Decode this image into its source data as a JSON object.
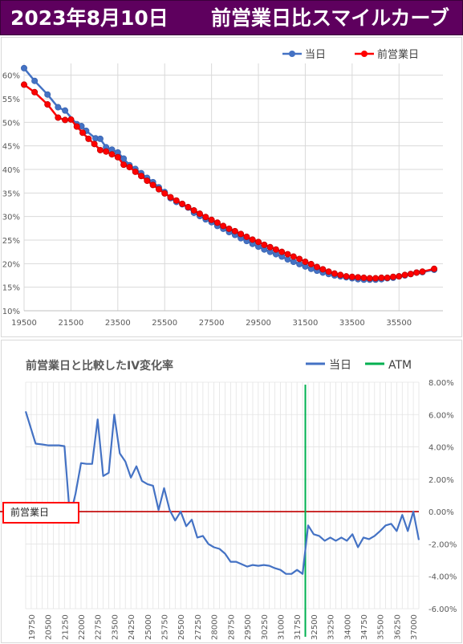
{
  "header": {
    "date": "2023年8月10日",
    "title": "前営業日比スマイルカーブ"
  },
  "label_box": "前営業日",
  "chart_data": [
    {
      "type": "line",
      "title": "",
      "x_ticks": [
        19500,
        21500,
        23500,
        25500,
        27500,
        29500,
        31500,
        33500,
        35500
      ],
      "y_ticks": [
        "10%",
        "15%",
        "20%",
        "25%",
        "30%",
        "35%",
        "40%",
        "45%",
        "50%",
        "55%",
        "60%"
      ],
      "xlim": [
        19500,
        37375
      ],
      "ylim": [
        10,
        62.5
      ],
      "y_unit": "%",
      "grid": true,
      "legend": "top-right",
      "series": [
        {
          "name": "当日",
          "color": "#4472c4",
          "points": [
            [
              19500,
              61.5
            ],
            [
              19950,
              58.8
            ],
            [
              20500,
              55.9
            ],
            [
              20950,
              53.2
            ],
            [
              21250,
              52.5
            ],
            [
              21750,
              49.6
            ],
            [
              21950,
              49.2
            ],
            [
              22150,
              48.2
            ],
            [
              22550,
              46.6
            ],
            [
              22750,
              46.5
            ],
            [
              23000,
              44.7
            ],
            [
              23250,
              44.2
            ],
            [
              23500,
              43.6
            ],
            [
              23750,
              42.3
            ],
            [
              24000,
              40.9
            ],
            [
              24250,
              40.1
            ],
            [
              24500,
              39.2
            ],
            [
              24750,
              38.2
            ],
            [
              25000,
              37.3
            ],
            [
              25250,
              36.2
            ],
            [
              25500,
              35.2
            ],
            [
              25750,
              33.9
            ],
            [
              26000,
              33.1
            ],
            [
              26250,
              32.6
            ],
            [
              26500,
              31.9
            ],
            [
              26750,
              30.8
            ],
            [
              27000,
              30.1
            ],
            [
              27250,
              29.4
            ],
            [
              27500,
              28.8
            ],
            [
              27750,
              28.0
            ],
            [
              28000,
              27.4
            ],
            [
              28250,
              26.7
            ],
            [
              28500,
              26.1
            ],
            [
              28750,
              25.4
            ],
            [
              29000,
              24.8
            ],
            [
              29250,
              24.2
            ],
            [
              29500,
              23.6
            ],
            [
              29750,
              23.0
            ],
            [
              30000,
              22.5
            ],
            [
              30250,
              22.0
            ],
            [
              30500,
              21.5
            ],
            [
              30750,
              20.9
            ],
            [
              31000,
              20.4
            ],
            [
              31250,
              19.9
            ],
            [
              31500,
              19.4
            ],
            [
              31750,
              18.9
            ],
            [
              32000,
              18.5
            ],
            [
              32250,
              18.1
            ],
            [
              32500,
              17.8
            ],
            [
              32750,
              17.5
            ],
            [
              33000,
              17.3
            ],
            [
              33250,
              17.1
            ],
            [
              33500,
              16.9
            ],
            [
              33750,
              16.7
            ],
            [
              34000,
              16.6
            ],
            [
              34250,
              16.6
            ],
            [
              34500,
              16.6
            ],
            [
              34750,
              16.7
            ],
            [
              35000,
              16.9
            ],
            [
              35250,
              17.0
            ],
            [
              35500,
              17.3
            ],
            [
              35750,
              17.5
            ],
            [
              36000,
              17.8
            ],
            [
              36250,
              18.1
            ],
            [
              36500,
              18.2
            ],
            [
              37000,
              18.7
            ]
          ]
        },
        {
          "name": "前営業日",
          "color": "#ff0000",
          "points": [
            [
              19500,
              58.0
            ],
            [
              19950,
              56.4
            ],
            [
              20500,
              53.8
            ],
            [
              20950,
              51.0
            ],
            [
              21250,
              50.5
            ],
            [
              21500,
              50.6
            ],
            [
              21750,
              49.1
            ],
            [
              22000,
              47.8
            ],
            [
              22250,
              46.5
            ],
            [
              22500,
              45.4
            ],
            [
              22750,
              44.1
            ],
            [
              23000,
              43.8
            ],
            [
              23250,
              43.2
            ],
            [
              23500,
              42.6
            ],
            [
              23750,
              41.0
            ],
            [
              24000,
              40.5
            ],
            [
              24250,
              39.5
            ],
            [
              24500,
              38.6
            ],
            [
              24750,
              37.6
            ],
            [
              25000,
              36.7
            ],
            [
              25250,
              35.8
            ],
            [
              25500,
              34.9
            ],
            [
              25750,
              34.1
            ],
            [
              26000,
              33.4
            ],
            [
              26250,
              32.7
            ],
            [
              26500,
              32.0
            ],
            [
              26750,
              31.3
            ],
            [
              27000,
              30.6
            ],
            [
              27250,
              29.9
            ],
            [
              27500,
              29.3
            ],
            [
              27750,
              28.7
            ],
            [
              28000,
              28.0
            ],
            [
              28250,
              27.4
            ],
            [
              28500,
              26.9
            ],
            [
              28750,
              26.3
            ],
            [
              29000,
              25.7
            ],
            [
              29250,
              25.1
            ],
            [
              29500,
              24.6
            ],
            [
              29750,
              24.0
            ],
            [
              30000,
              23.5
            ],
            [
              30250,
              23.0
            ],
            [
              30500,
              22.5
            ],
            [
              30750,
              22.0
            ],
            [
              31000,
              21.5
            ],
            [
              31250,
              21.0
            ],
            [
              31500,
              20.4
            ],
            [
              31750,
              19.9
            ],
            [
              32000,
              19.3
            ],
            [
              32250,
              18.8
            ],
            [
              32500,
              18.3
            ],
            [
              32750,
              17.9
            ],
            [
              33000,
              17.6
            ],
            [
              33250,
              17.3
            ],
            [
              33500,
              17.2
            ],
            [
              33750,
              17.1
            ],
            [
              34000,
              17.0
            ],
            [
              34250,
              16.9
            ],
            [
              34500,
              16.9
            ],
            [
              34750,
              17.0
            ],
            [
              35000,
              17.0
            ],
            [
              35250,
              17.2
            ],
            [
              35500,
              17.3
            ],
            [
              35750,
              17.6
            ],
            [
              36000,
              17.8
            ],
            [
              36250,
              18.1
            ],
            [
              36500,
              18.3
            ],
            [
              37000,
              18.9
            ]
          ]
        }
      ]
    },
    {
      "type": "line",
      "title": "前営業日と比較したIV変化率",
      "x_ticks": [
        19750,
        20500,
        21250,
        22000,
        22750,
        23500,
        24250,
        25000,
        25750,
        26500,
        27250,
        28000,
        28750,
        29500,
        30250,
        31000,
        31750,
        32500,
        33250,
        34000,
        34750,
        35500,
        36250,
        37000
      ],
      "xlim": [
        19500,
        37250
      ],
      "y_ticks": [
        "8.00%",
        "6.00%",
        "4.00%",
        "2.00%",
        "0.00%",
        "-2.00%",
        "-4.00%",
        "-6.00%"
      ],
      "ylim": [
        -6,
        8
      ],
      "y_unit": "%",
      "legend": "top-right",
      "series": [
        {
          "name": "当日",
          "color": "#4472c4",
          "points": [
            [
              19500,
              6.2
            ],
            [
              19950,
              4.2
            ],
            [
              20250,
              4.15
            ],
            [
              20500,
              4.1
            ],
            [
              20800,
              4.1
            ],
            [
              21000,
              4.1
            ],
            [
              21250,
              4.05
            ],
            [
              21500,
              -0.35
            ],
            [
              21750,
              1.1
            ],
            [
              22000,
              3.0
            ],
            [
              22250,
              2.95
            ],
            [
              22500,
              2.95
            ],
            [
              22750,
              5.7
            ],
            [
              23000,
              2.2
            ],
            [
              23250,
              2.4
            ],
            [
              23500,
              6.0
            ],
            [
              23750,
              3.6
            ],
            [
              24000,
              3.1
            ],
            [
              24250,
              2.1
            ],
            [
              24500,
              2.8
            ],
            [
              24750,
              1.9
            ],
            [
              25000,
              1.7
            ],
            [
              25250,
              1.6
            ],
            [
              25500,
              0.1
            ],
            [
              25750,
              1.45
            ],
            [
              26000,
              0.1
            ],
            [
              26250,
              -0.55
            ],
            [
              26500,
              0.0
            ],
            [
              26750,
              -0.9
            ],
            [
              27000,
              -0.5
            ],
            [
              27250,
              -1.6
            ],
            [
              27500,
              -1.5
            ],
            [
              27750,
              -2.0
            ],
            [
              28000,
              -2.2
            ],
            [
              28250,
              -2.3
            ],
            [
              28500,
              -2.6
            ],
            [
              28750,
              -3.1
            ],
            [
              29000,
              -3.1
            ],
            [
              29250,
              -3.25
            ],
            [
              29500,
              -3.4
            ],
            [
              29750,
              -3.3
            ],
            [
              30000,
              -3.35
            ],
            [
              30250,
              -3.3
            ],
            [
              30500,
              -3.35
            ],
            [
              30750,
              -3.5
            ],
            [
              31000,
              -3.6
            ],
            [
              31250,
              -3.85
            ],
            [
              31500,
              -3.85
            ],
            [
              31750,
              -3.6
            ],
            [
              32000,
              -3.85
            ],
            [
              32250,
              -0.85
            ],
            [
              32500,
              -1.4
            ],
            [
              32750,
              -1.5
            ],
            [
              33000,
              -1.8
            ],
            [
              33250,
              -1.6
            ],
            [
              33500,
              -1.8
            ],
            [
              33750,
              -1.6
            ],
            [
              34000,
              -1.8
            ],
            [
              34250,
              -1.4
            ],
            [
              34500,
              -2.2
            ],
            [
              34750,
              -1.6
            ],
            [
              35000,
              -1.7
            ],
            [
              35250,
              -1.5
            ],
            [
              35500,
              -1.2
            ],
            [
              35750,
              -0.85
            ],
            [
              36000,
              -0.75
            ],
            [
              36250,
              -1.2
            ],
            [
              36500,
              -0.2
            ],
            [
              36750,
              -1.2
            ],
            [
              37000,
              0.0
            ],
            [
              37250,
              -1.75
            ]
          ]
        },
        {
          "name": "ATM",
          "color": "#00b050",
          "x": 32125
        },
        {
          "name": "前営業日",
          "color": "#c00000",
          "y": 0
        }
      ]
    }
  ]
}
